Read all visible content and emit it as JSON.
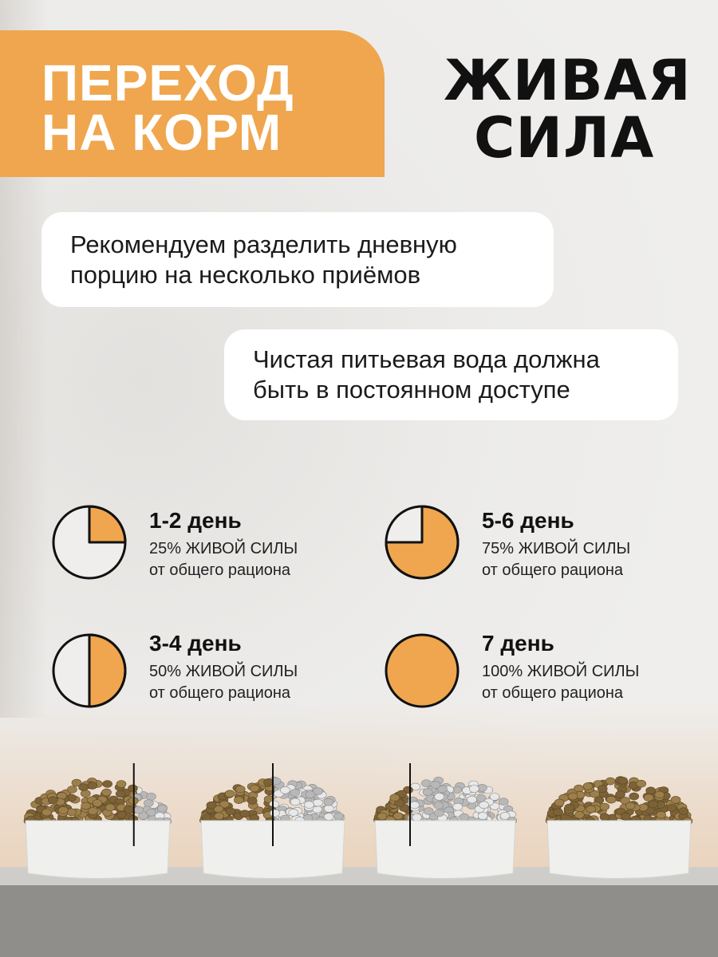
{
  "header": {
    "title_line1": "ПЕРЕХОД",
    "title_line2": "НА КОРМ",
    "accent_color": "#EFA64E"
  },
  "brand": {
    "line1": "ЖИВАЯ",
    "line2": "СИЛА"
  },
  "tips": [
    {
      "line1": "Рекомендуем разделить дневную",
      "line2": "порцию на несколько приёмов"
    },
    {
      "line1": "Чистая питьевая вода должна",
      "line2": "быть в постоянном доступе"
    }
  ],
  "steps": [
    {
      "title": "1-2 день",
      "percent_text": "25% ЖИВОЙ СИЛЫ",
      "note": "от общего рациона",
      "fraction": 0.25
    },
    {
      "title": "3-4 день",
      "percent_text": "50% ЖИВОЙ СИЛЫ",
      "note": "от общего рациона",
      "fraction": 0.5
    },
    {
      "title": "5-6 день",
      "percent_text": "75% ЖИВОЙ СИЛЫ",
      "note": "от общего рациона",
      "fraction": 0.75
    },
    {
      "title": "7 день",
      "percent_text": "100% ЖИВОЙ СИЛЫ",
      "note": "от общего рациона",
      "fraction": 1.0
    }
  ],
  "bowls": [
    {
      "new_food_share": 0.25
    },
    {
      "new_food_share": 0.5
    },
    {
      "new_food_share": 0.75
    },
    {
      "new_food_share": 1.0
    }
  ]
}
